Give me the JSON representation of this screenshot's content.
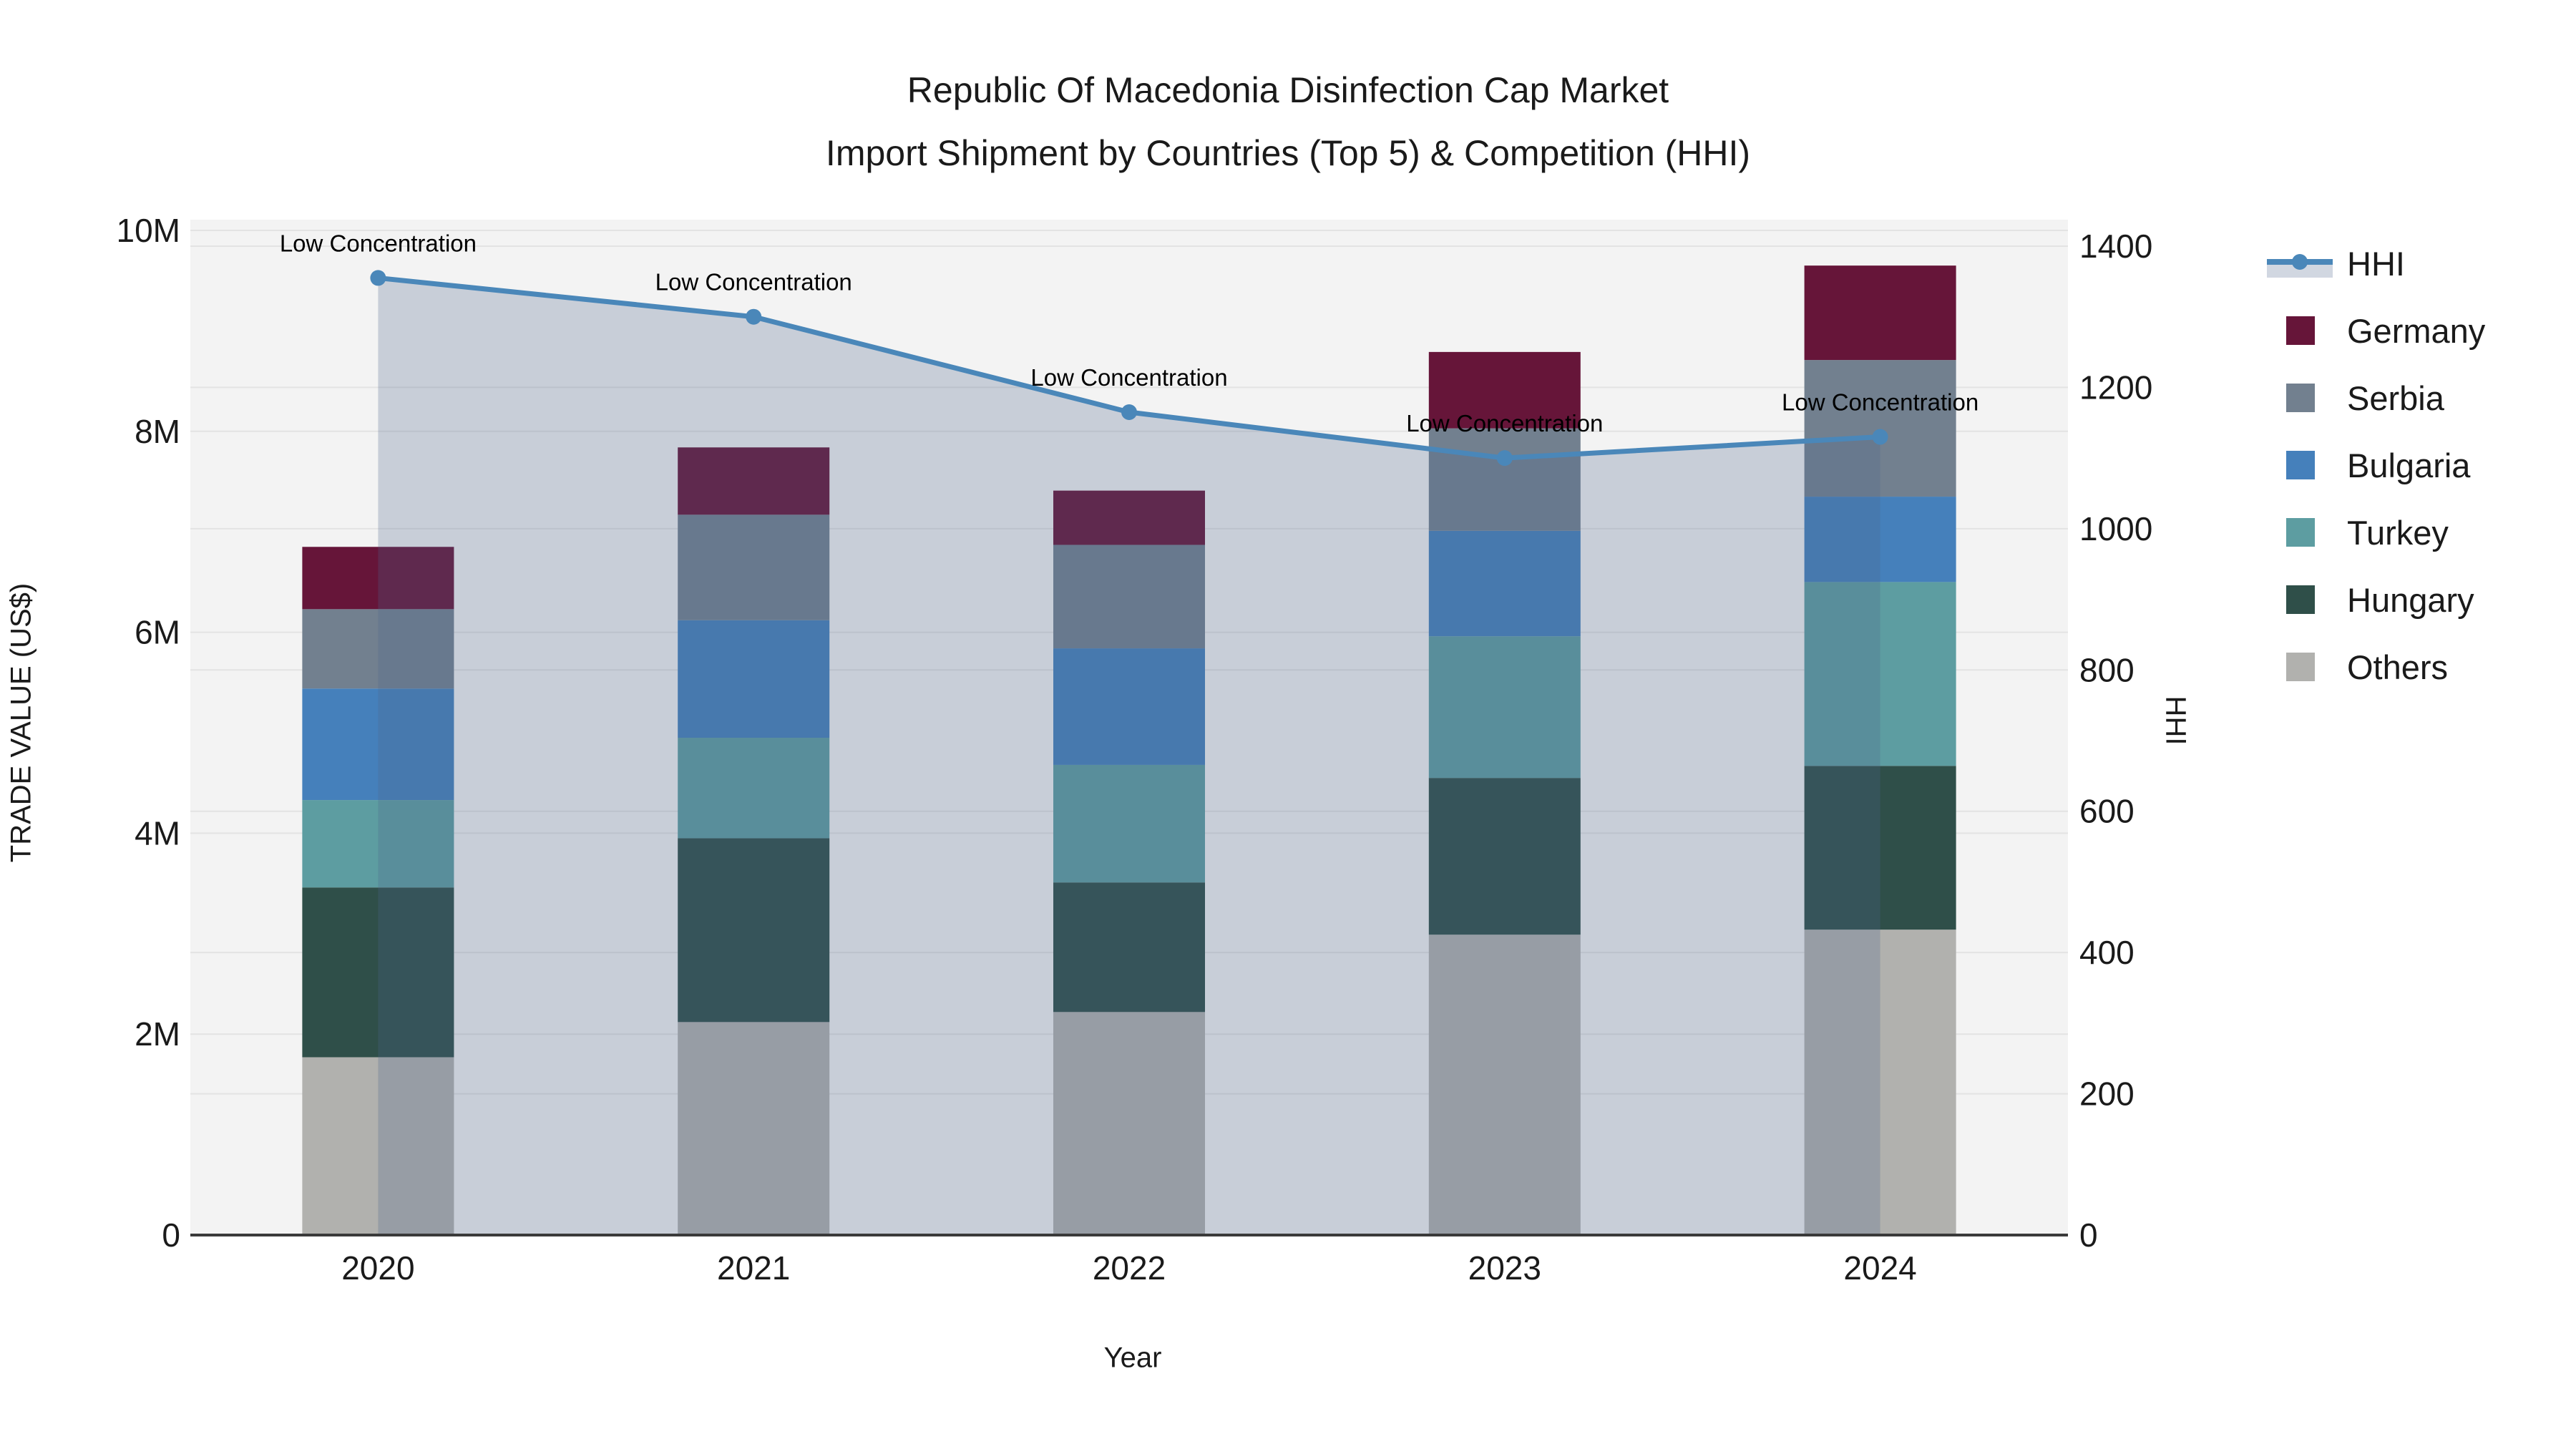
{
  "title": {
    "line1": "Republic Of Macedonia Disinfection Cap Market",
    "line2": "Import Shipment by Countries (Top 5) & Competition (HHI)"
  },
  "axes": {
    "x_title": "Year",
    "y_left_title": "TRADE VALUE (US$)",
    "y_right_title": "HHI",
    "y_left_ticks": [
      {
        "value": 0,
        "label": "0"
      },
      {
        "value": 2000000,
        "label": "2M"
      },
      {
        "value": 4000000,
        "label": "4M"
      },
      {
        "value": 6000000,
        "label": "6M"
      },
      {
        "value": 8000000,
        "label": "8M"
      },
      {
        "value": 10000000,
        "label": "10M"
      }
    ],
    "y_right_ticks": [
      0,
      200,
      400,
      600,
      800,
      1000,
      1200,
      1400
    ],
    "y_left_max": 10000000,
    "y_right_max": 1400
  },
  "colors": {
    "plot_background": "#f3f3f3",
    "gridline": "#e3e3e3",
    "axis_line": "#3a3a3a",
    "text": "#1a1a1a",
    "annotation_text": "#000000",
    "hhi_line": "#4a87b9",
    "hhi_fill": "#4c648a",
    "hhi_fill_alpha": 0.26
  },
  "chart_data": {
    "type": "bar",
    "subtype": "stacked-bars-with-line-overlay",
    "categories": [
      "2020",
      "2021",
      "2022",
      "2023",
      "2024"
    ],
    "value_unit": "US$",
    "series": [
      {
        "name": "Others",
        "color": "#b1b1ae",
        "values": [
          1770000,
          2120000,
          2220000,
          2990000,
          3040000
        ]
      },
      {
        "name": "Hungary",
        "color": "#2f4f49",
        "values": [
          1690000,
          1830000,
          1290000,
          1560000,
          1630000
        ]
      },
      {
        "name": "Turkey",
        "color": "#5d9da1",
        "values": [
          870000,
          1000000,
          1170000,
          1410000,
          1830000
        ]
      },
      {
        "name": "Bulgaria",
        "color": "#4580bb",
        "values": [
          1110000,
          1170000,
          1160000,
          1050000,
          850000
        ]
      },
      {
        "name": "Serbia",
        "color": "#72808f",
        "values": [
          790000,
          1050000,
          1030000,
          1020000,
          1360000
        ]
      },
      {
        "name": "Germany",
        "color": "#661539",
        "values": [
          620000,
          670000,
          540000,
          760000,
          940000
        ]
      }
    ],
    "bar_totals": [
      6850000,
      7840000,
      7410000,
      8790000,
      9650000
    ],
    "line_series": {
      "name": "HHI",
      "axis": "right",
      "values": [
        1355,
        1300,
        1165,
        1100,
        1130
      ]
    },
    "annotations": [
      "Low Concentration",
      "Low Concentration",
      "Low Concentration",
      "Low Concentration",
      "Low Concentration"
    ],
    "legend_position": "right",
    "grid": true
  }
}
